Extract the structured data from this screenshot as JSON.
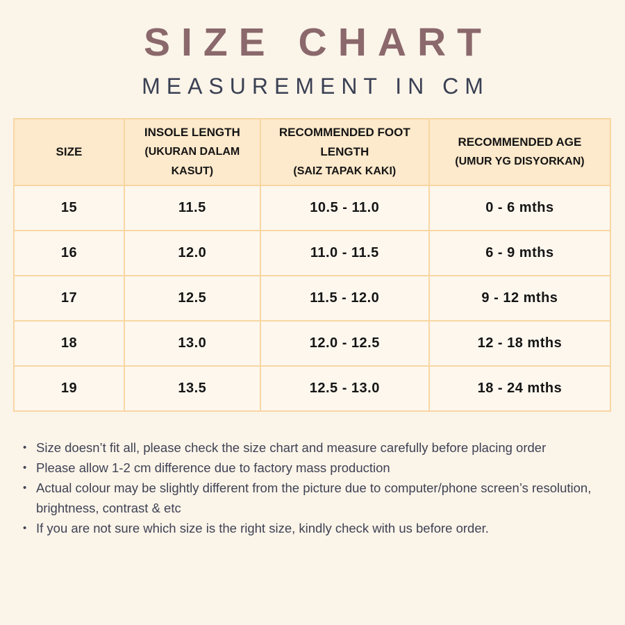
{
  "header": {
    "title": "SIZE CHART",
    "subtitle": "MEASUREMENT IN CM"
  },
  "table": {
    "columns": [
      {
        "label": "SIZE",
        "sublabel": ""
      },
      {
        "label": "INSOLE LENGTH",
        "sublabel": "(UKURAN DALAM KASUT)"
      },
      {
        "label": "RECOMMENDED FOOT LENGTH",
        "sublabel": "(SAIZ TAPAK KAKI)"
      },
      {
        "label": "RECOMMENDED AGE",
        "sublabel": "(UMUR YG DISYORKAN)"
      }
    ],
    "rows": [
      [
        "15",
        "11.5",
        "10.5 - 11.0",
        "0 - 6 mths"
      ],
      [
        "16",
        "12.0",
        "11.0 - 11.5",
        "6 - 9 mths"
      ],
      [
        "17",
        "12.5",
        "11.5 - 12.0",
        "9 - 12 mths"
      ],
      [
        "18",
        "13.0",
        "12.0 - 12.5",
        "12 - 18 mths"
      ],
      [
        "19",
        "13.5",
        "12.5 - 13.0",
        "18 - 24 mths"
      ]
    ]
  },
  "notes": [
    "Size doesn’t fit all, please check the size chart and measure carefully before placing order",
    "Please allow 1-2 cm difference due to factory mass production",
    "Actual colour may be slightly different from the picture due to computer/phone screen’s resolution, brightness, contrast & etc",
    "If you are not sure which size is the right size, kindly check with us before order."
  ],
  "colors": {
    "page_bg": "#fbf4e9",
    "title": "#8a686b",
    "subtitle": "#3a4053",
    "table_border": "#f8d6a2",
    "table_header_bg": "#fde9cb",
    "table_cell_bg": "#fdf7ee",
    "cell_text": "#151515",
    "note_text": "#3f4254"
  }
}
